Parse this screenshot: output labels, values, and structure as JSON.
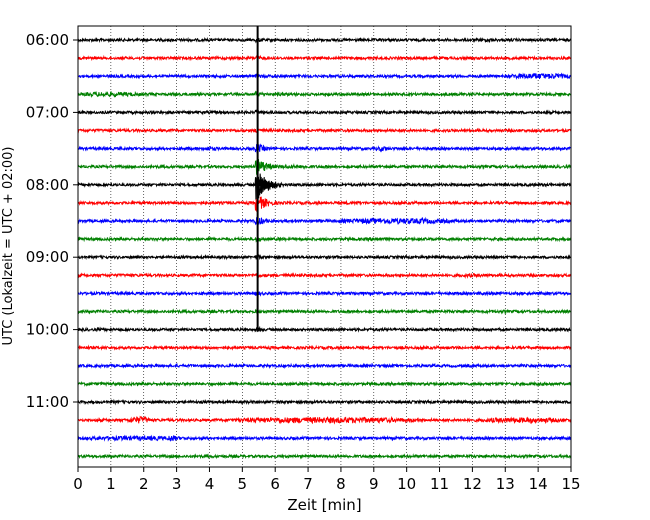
{
  "chart_data": {
    "type": "line",
    "title": "",
    "xlabel": "Zeit  [min]",
    "ylabel": "UTC (Lokalzeit = UTC + 02:00)",
    "xlim": [
      0,
      15
    ],
    "x_ticks": [
      0,
      1,
      2,
      3,
      4,
      5,
      6,
      7,
      8,
      9,
      10,
      11,
      12,
      13,
      14,
      15
    ],
    "x_tick_labels": [
      "0",
      "1",
      "2",
      "3",
      "4",
      "5",
      "6",
      "7",
      "8",
      "9",
      "10",
      "11",
      "12",
      "13",
      "14",
      "15"
    ],
    "y_tick_labels": [
      "06:00",
      "07:00",
      "08:00",
      "09:00",
      "10:00",
      "11:00"
    ],
    "y_tick_rows": [
      0,
      4,
      8,
      12,
      16,
      20
    ],
    "grid": {
      "x": true,
      "y": false,
      "style": "dotted"
    },
    "row_start_time": "06:00",
    "row_interval_min": 15,
    "row_count": 24,
    "color_cycle": [
      "#000000",
      "#ff0000",
      "#0000ff",
      "#008000"
    ],
    "event": {
      "time": "07:50",
      "x_min": 5.45,
      "trace_spans": [
        "06:00",
        "10:00"
      ],
      "strongest_row": "08:00"
    },
    "activity": [
      {
        "row": 0,
        "x": [
          12.3,
          12.7
        ],
        "amp": 1.5
      },
      {
        "row": 2,
        "x": [
          13.0,
          15.0
        ],
        "amp": 2.5
      },
      {
        "row": 3,
        "x": [
          0.0,
          2.0
        ],
        "amp": 2.0
      },
      {
        "row": 3,
        "x": [
          5.5,
          7.0
        ],
        "amp": 1.3
      },
      {
        "row": 6,
        "x": [
          3.7,
          4.3
        ],
        "amp": 1.8
      },
      {
        "row": 6,
        "x": [
          9.0,
          9.5
        ],
        "amp": 2.0
      },
      {
        "row": 7,
        "x": [
          5.6,
          7.5
        ],
        "amp": 1.5
      },
      {
        "row": 9,
        "x": [
          7.5,
          9.0
        ],
        "amp": 1.3
      },
      {
        "row": 10,
        "x": [
          7.8,
          11.5
        ],
        "amp": 2.4
      },
      {
        "row": 11,
        "x": [
          8.8,
          9.2
        ],
        "amp": 1.8
      },
      {
        "row": 13,
        "x": [
          11.0,
          13.0
        ],
        "amp": 1.5
      },
      {
        "row": 14,
        "x": [
          8.0,
          9.0
        ],
        "amp": 1.3
      },
      {
        "row": 14,
        "x": [
          11.5,
          13.5
        ],
        "amp": 1.3
      },
      {
        "row": 15,
        "x": [
          6.5,
          7.5
        ],
        "amp": 1.2
      },
      {
        "row": 16,
        "x": [
          8.5,
          9.5
        ],
        "amp": 1.2
      },
      {
        "row": 17,
        "x": [
          0.0,
          0.5
        ],
        "amp": 1.3
      },
      {
        "row": 19,
        "x": [
          13.5,
          15.0
        ],
        "amp": 1.3
      },
      {
        "row": 20,
        "x": [
          0.5,
          1.5
        ],
        "amp": 1.3
      },
      {
        "row": 21,
        "x": [
          1.5,
          2.2
        ],
        "amp": 3.0
      },
      {
        "row": 21,
        "x": [
          4.5,
          10.5
        ],
        "amp": 2.5
      },
      {
        "row": 21,
        "x": [
          12.0,
          15.0
        ],
        "amp": 2.2
      },
      {
        "row": 22,
        "x": [
          0.0,
          3.5
        ],
        "amp": 1.8
      },
      {
        "row": 22,
        "x": [
          2.7,
          3.0
        ],
        "amp": 2.8
      }
    ]
  }
}
